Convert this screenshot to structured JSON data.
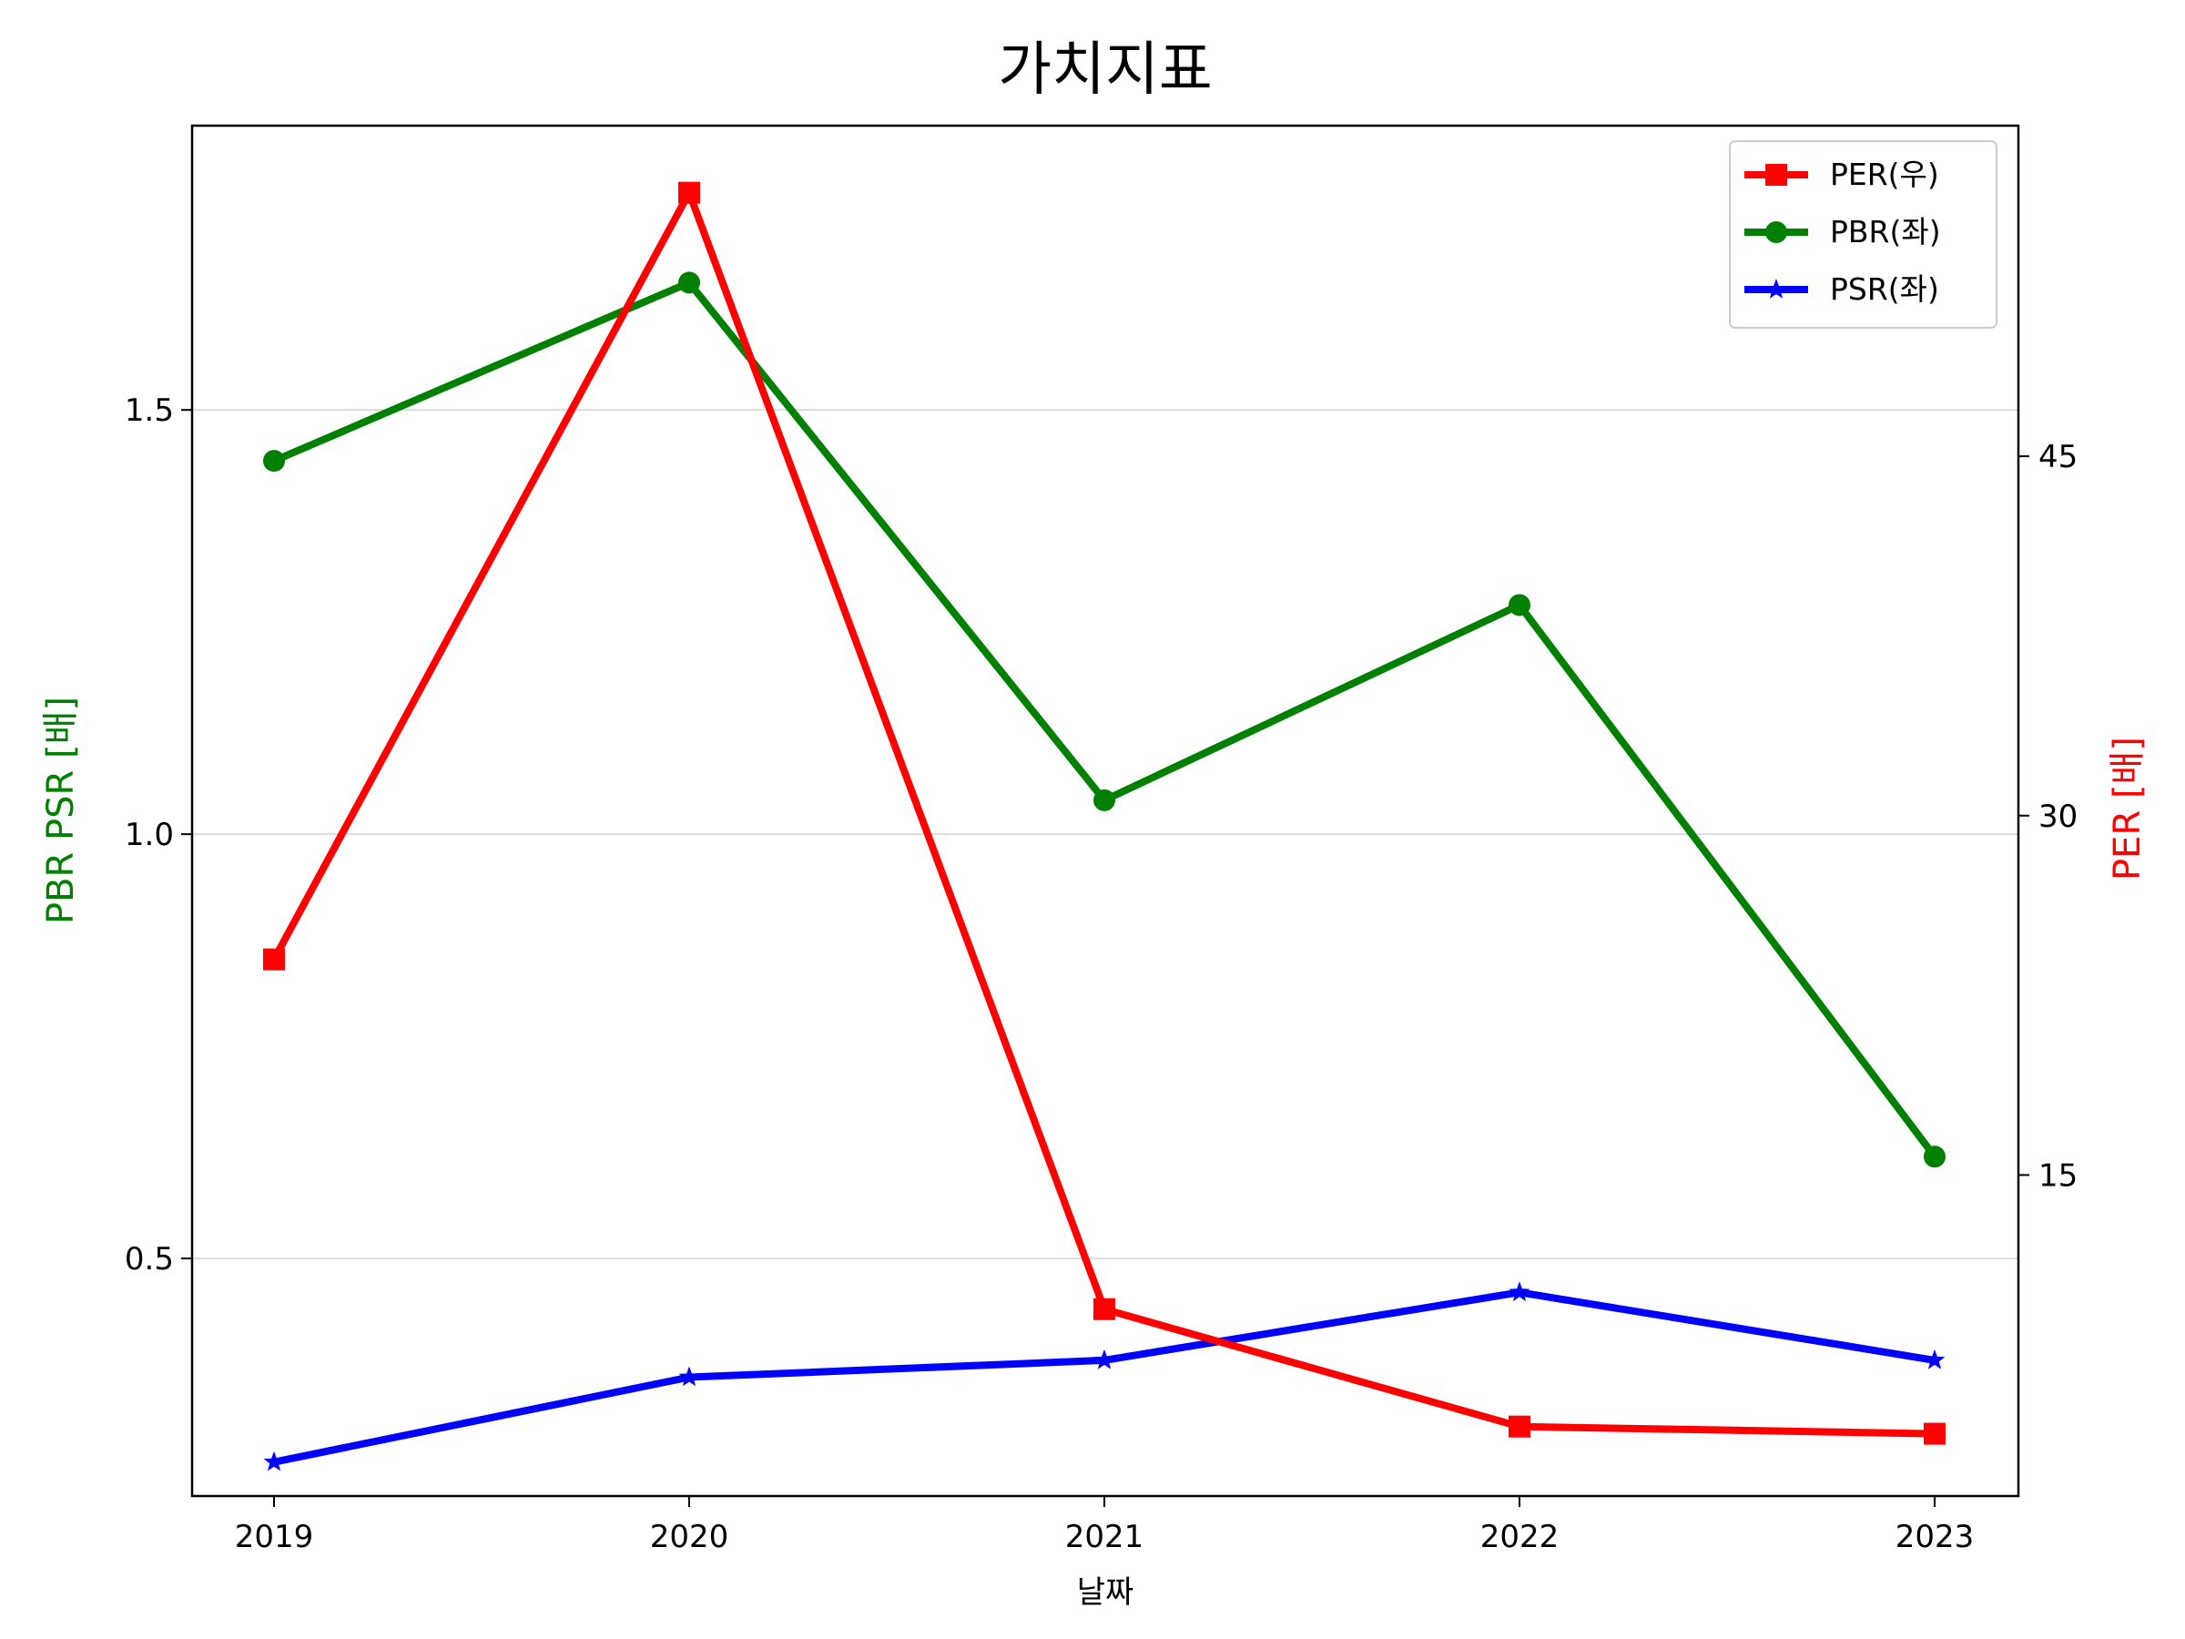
{
  "chart_data": {
    "type": "line",
    "title": "가치지표",
    "xlabel": "날짜",
    "ylabel_left": "PBR PSR [배]",
    "ylabel_right": "PER [배]",
    "categories": [
      "2019",
      "2020",
      "2021",
      "2022",
      "2023"
    ],
    "left_axis": {
      "ylim": [
        0.22,
        1.835
      ],
      "ticks": [
        "0.5",
        "1.0",
        "1.5"
      ],
      "tick_values": [
        0.5,
        1.0,
        1.5
      ],
      "grid": true
    },
    "right_axis": {
      "ylim": [
        1.6,
        58.8
      ],
      "ticks": [
        "15",
        "30",
        "45"
      ],
      "tick_values": [
        15,
        30,
        45
      ]
    },
    "series": [
      {
        "name": "PER(우)",
        "axis": "right",
        "color": "#ff0000",
        "marker": "square",
        "values": [
          24.0,
          56.0,
          9.4,
          4.5,
          4.2
        ]
      },
      {
        "name": "PBR(좌)",
        "axis": "left",
        "color": "#008000",
        "marker": "circle",
        "values": [
          1.44,
          1.65,
          1.04,
          1.27,
          0.62
        ]
      },
      {
        "name": "PSR(좌)",
        "axis": "left",
        "color": "#0000ff",
        "marker": "star",
        "values": [
          0.26,
          0.36,
          0.38,
          0.46,
          0.38
        ]
      }
    ],
    "legend_position": "top-right"
  }
}
